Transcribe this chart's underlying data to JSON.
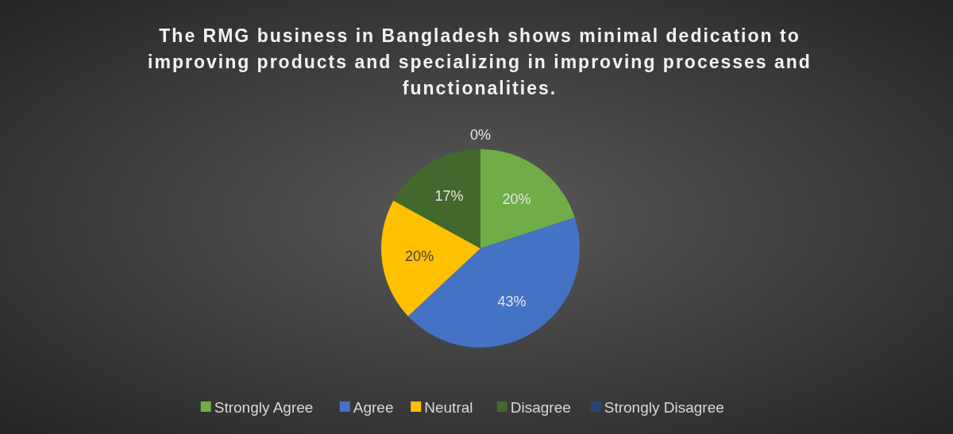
{
  "chart_data": {
    "type": "pie",
    "title": "The RMG business in Bangladesh shows minimal dedication to improving products and specializing in improving processes and functionalities.",
    "categories": [
      "Strongly Agree",
      "Agree",
      "Neutral",
      "Disagree",
      "Strongly Disagree"
    ],
    "values": [
      20,
      43,
      20,
      17,
      0
    ],
    "colors": [
      "#70ad47",
      "#4472c4",
      "#ffc000",
      "#43682b",
      "#264478"
    ],
    "value_labels": [
      "20%",
      "43%",
      "20%",
      "17%",
      "0%"
    ],
    "legend": "bottom"
  }
}
